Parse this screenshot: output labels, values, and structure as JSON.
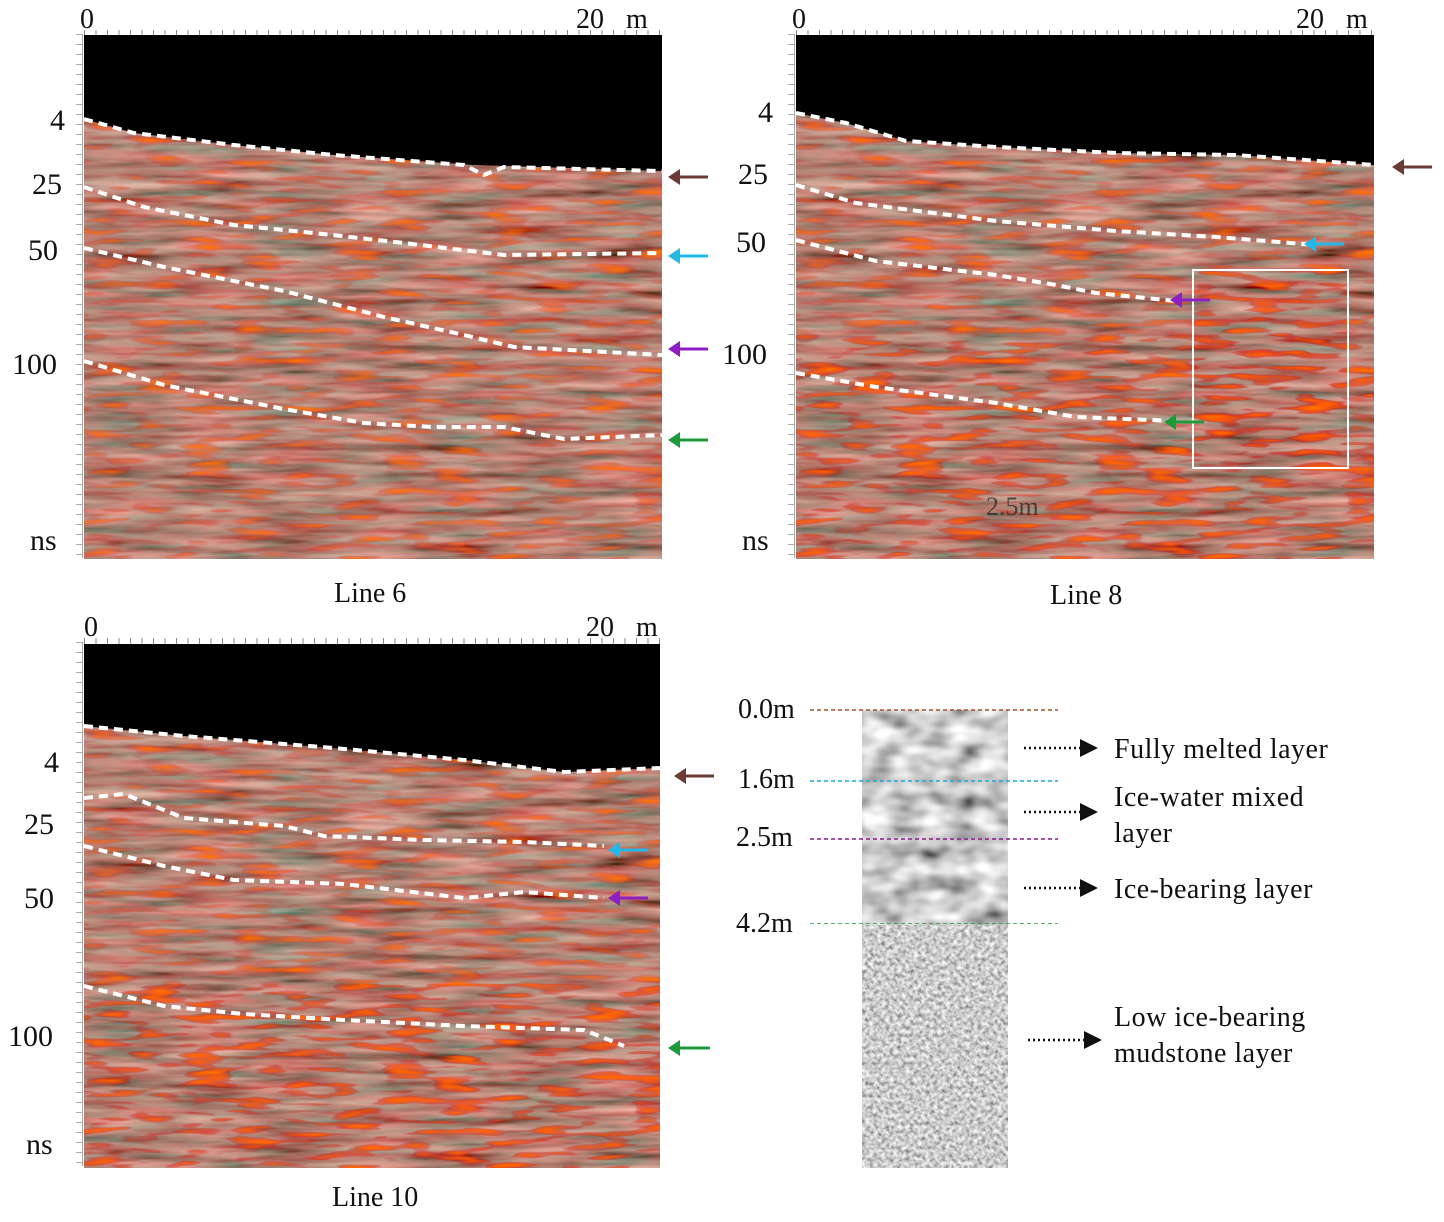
{
  "panels": [
    {
      "id": "line6",
      "caption": "Line 6",
      "x_axis": {
        "start": "0",
        "end": "20",
        "unit": "m"
      },
      "y_axis": {
        "ticks": [
          "4",
          "25",
          "50",
          "100",
          "ns"
        ]
      }
    },
    {
      "id": "line8",
      "caption": "Line 8",
      "x_axis": {
        "start": "0",
        "end": "20",
        "unit": "m"
      },
      "y_axis": {
        "ticks": [
          "4",
          "25",
          "50",
          "100",
          "ns"
        ]
      },
      "inset_label": "2.5m"
    },
    {
      "id": "line10",
      "caption": "Line 10",
      "x_axis": {
        "start": "0",
        "end": "20",
        "unit": "m"
      },
      "y_axis": {
        "ticks": [
          "4",
          "25",
          "50",
          "100",
          "ns"
        ]
      }
    }
  ],
  "column": {
    "depths": [
      {
        "label": "0.0m",
        "color": "#a0522d"
      },
      {
        "label": "1.6m",
        "color": "#1fa9d6"
      },
      {
        "label": "2.5m",
        "color": "#8b1a8b"
      },
      {
        "label": "4.2m",
        "color": "#1a9e3a"
      }
    ],
    "layers": [
      {
        "lines": [
          "Fully melted layer"
        ]
      },
      {
        "lines": [
          "Ice-water mixed",
          "layer"
        ]
      },
      {
        "lines": [
          "Ice-bearing layer"
        ]
      },
      {
        "lines": [
          "Low ice-bearing",
          "mudstone layer"
        ]
      }
    ]
  },
  "arrow_colors": {
    "brown": "#6b3a34",
    "cyan": "#22b8e8",
    "purple": "#8e1fc4",
    "green": "#1f9a3a"
  }
}
